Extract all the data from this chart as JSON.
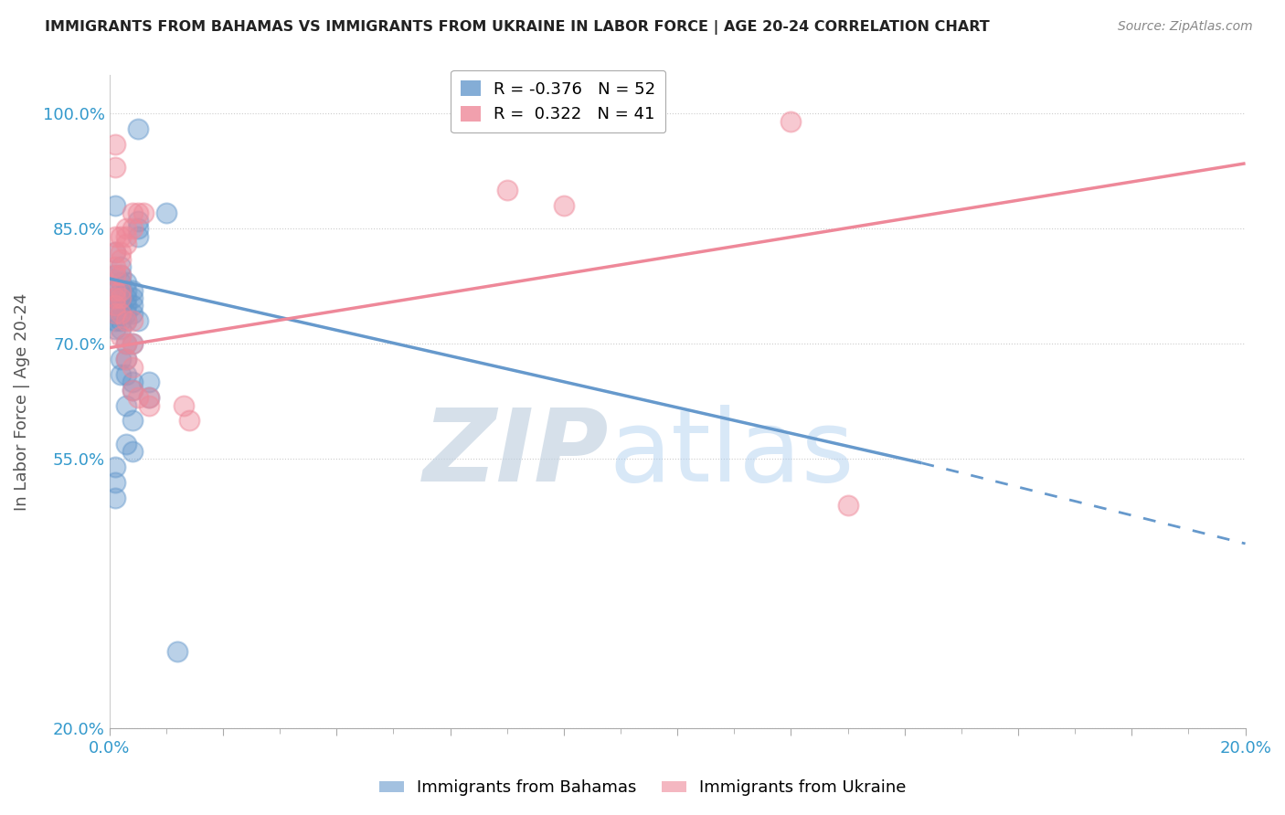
{
  "title": "IMMIGRANTS FROM BAHAMAS VS IMMIGRANTS FROM UKRAINE IN LABOR FORCE | AGE 20-24 CORRELATION CHART",
  "source": "Source: ZipAtlas.com",
  "ylabel": "In Labor Force | Age 20-24",
  "blue_label": "Immigrants from Bahamas",
  "pink_label": "Immigrants from Ukraine",
  "blue_R": -0.376,
  "blue_N": 52,
  "pink_R": 0.322,
  "pink_N": 41,
  "xlim": [
    0.0,
    0.2
  ],
  "ylim": [
    0.2,
    1.05
  ],
  "yticks": [
    0.2,
    0.55,
    0.7,
    0.85,
    1.0
  ],
  "ytick_labels": [
    "20.0%",
    "55.0%",
    "70.0%",
    "85.0%",
    "100.0%"
  ],
  "xticks": [
    0.0,
    0.02,
    0.04,
    0.06,
    0.08,
    0.1,
    0.12,
    0.14,
    0.16,
    0.18,
    0.2
  ],
  "xtick_labels": [
    "0.0%",
    "",
    "",
    "",
    "",
    "",
    "",
    "",
    "",
    "",
    "20.0%"
  ],
  "grid_color": "#cccccc",
  "blue_color": "#6699cc",
  "pink_color": "#ee8899",
  "blue_line": [
    0.0,
    0.785,
    0.143,
    0.545
  ],
  "blue_dash": [
    0.143,
    0.545,
    0.2,
    0.44
  ],
  "pink_line": [
    0.0,
    0.695,
    0.2,
    0.935
  ],
  "blue_dots": [
    [
      0.005,
      0.98
    ],
    [
      0.001,
      0.88
    ],
    [
      0.001,
      0.82
    ],
    [
      0.005,
      0.86
    ],
    [
      0.005,
      0.85
    ],
    [
      0.005,
      0.84
    ],
    [
      0.01,
      0.87
    ],
    [
      0.001,
      0.79
    ],
    [
      0.002,
      0.8
    ],
    [
      0.002,
      0.79
    ],
    [
      0.002,
      0.78
    ],
    [
      0.001,
      0.77
    ],
    [
      0.002,
      0.77
    ],
    [
      0.003,
      0.78
    ],
    [
      0.003,
      0.77
    ],
    [
      0.001,
      0.76
    ],
    [
      0.002,
      0.76
    ],
    [
      0.003,
      0.76
    ],
    [
      0.004,
      0.77
    ],
    [
      0.001,
      0.75
    ],
    [
      0.002,
      0.75
    ],
    [
      0.003,
      0.75
    ],
    [
      0.004,
      0.76
    ],
    [
      0.001,
      0.74
    ],
    [
      0.002,
      0.74
    ],
    [
      0.003,
      0.74
    ],
    [
      0.004,
      0.75
    ],
    [
      0.001,
      0.73
    ],
    [
      0.002,
      0.73
    ],
    [
      0.003,
      0.73
    ],
    [
      0.001,
      0.72
    ],
    [
      0.002,
      0.72
    ],
    [
      0.004,
      0.74
    ],
    [
      0.005,
      0.73
    ],
    [
      0.003,
      0.7
    ],
    [
      0.004,
      0.7
    ],
    [
      0.002,
      0.68
    ],
    [
      0.003,
      0.68
    ],
    [
      0.002,
      0.66
    ],
    [
      0.003,
      0.66
    ],
    [
      0.004,
      0.65
    ],
    [
      0.004,
      0.64
    ],
    [
      0.003,
      0.62
    ],
    [
      0.004,
      0.6
    ],
    [
      0.001,
      0.54
    ],
    [
      0.001,
      0.52
    ],
    [
      0.001,
      0.5
    ],
    [
      0.003,
      0.57
    ],
    [
      0.004,
      0.56
    ],
    [
      0.007,
      0.65
    ],
    [
      0.007,
      0.63
    ],
    [
      0.012,
      0.3
    ]
  ],
  "pink_dots": [
    [
      0.12,
      0.99
    ],
    [
      0.001,
      0.96
    ],
    [
      0.001,
      0.93
    ],
    [
      0.07,
      0.9
    ],
    [
      0.08,
      0.88
    ],
    [
      0.004,
      0.87
    ],
    [
      0.005,
      0.87
    ],
    [
      0.006,
      0.87
    ],
    [
      0.003,
      0.85
    ],
    [
      0.004,
      0.85
    ],
    [
      0.001,
      0.84
    ],
    [
      0.002,
      0.84
    ],
    [
      0.003,
      0.84
    ],
    [
      0.001,
      0.82
    ],
    [
      0.002,
      0.82
    ],
    [
      0.003,
      0.83
    ],
    [
      0.001,
      0.8
    ],
    [
      0.002,
      0.81
    ],
    [
      0.001,
      0.79
    ],
    [
      0.002,
      0.79
    ],
    [
      0.001,
      0.77
    ],
    [
      0.002,
      0.77
    ],
    [
      0.001,
      0.76
    ],
    [
      0.002,
      0.76
    ],
    [
      0.001,
      0.75
    ],
    [
      0.001,
      0.74
    ],
    [
      0.002,
      0.74
    ],
    [
      0.003,
      0.73
    ],
    [
      0.004,
      0.73
    ],
    [
      0.002,
      0.71
    ],
    [
      0.003,
      0.7
    ],
    [
      0.004,
      0.7
    ],
    [
      0.003,
      0.68
    ],
    [
      0.004,
      0.67
    ],
    [
      0.004,
      0.64
    ],
    [
      0.005,
      0.63
    ],
    [
      0.007,
      0.63
    ],
    [
      0.007,
      0.62
    ],
    [
      0.013,
      0.62
    ],
    [
      0.014,
      0.6
    ],
    [
      0.13,
      0.49
    ]
  ]
}
